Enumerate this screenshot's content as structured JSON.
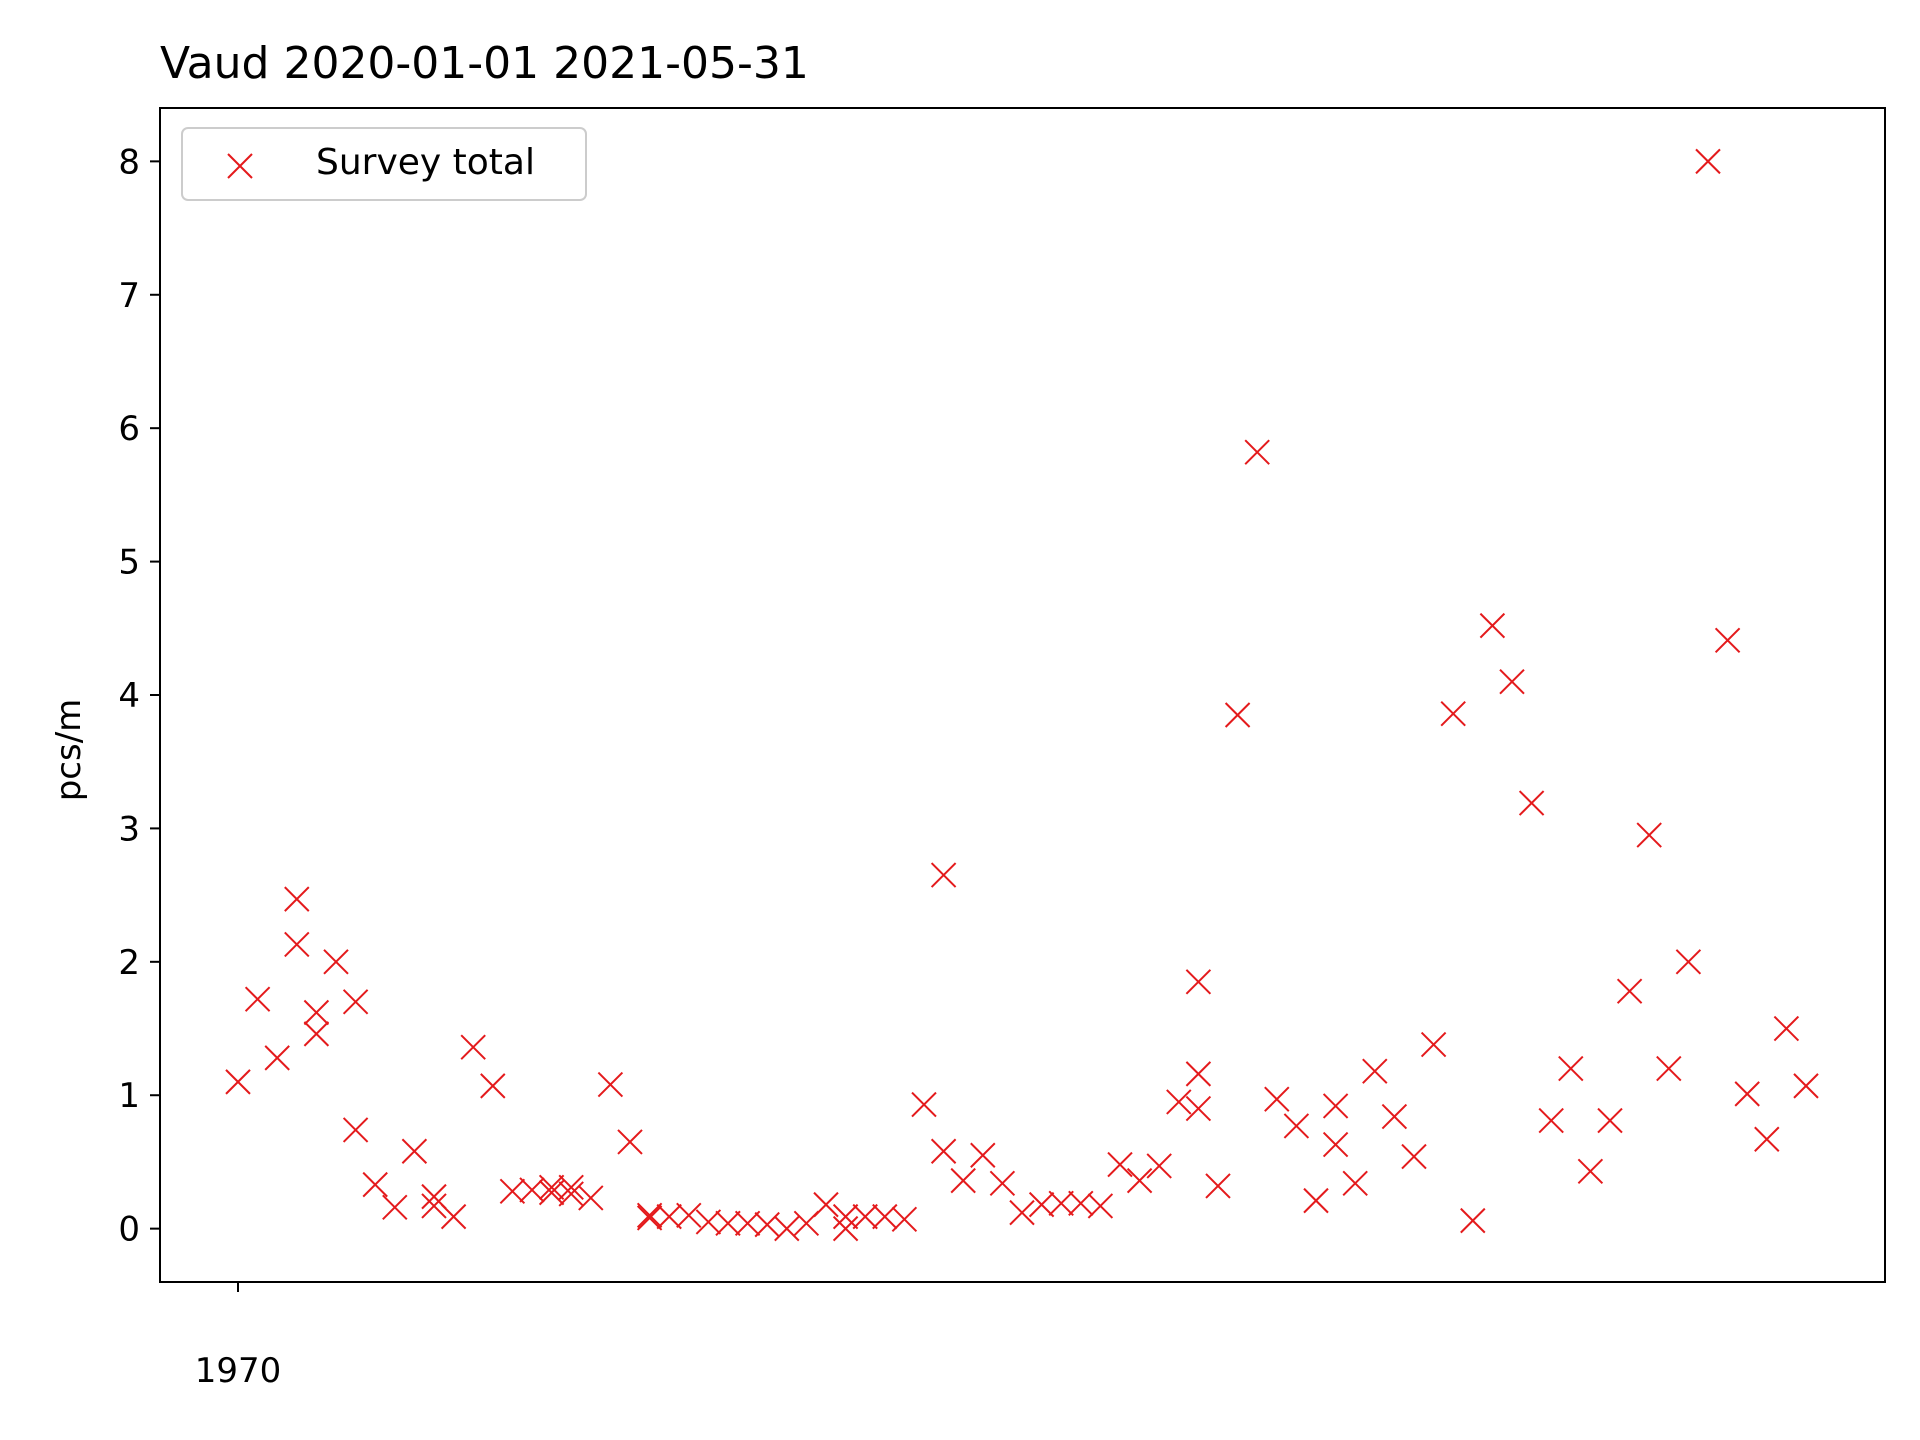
{
  "chart_data": {
    "type": "scatter",
    "title": "Vaud 2020-01-01 2021-05-31",
    "xlabel": "",
    "ylabel": "pcs/m",
    "x_ticks": [
      {
        "index": 0,
        "label": "1970"
      }
    ],
    "y_ticks": [
      0,
      1,
      2,
      3,
      4,
      5,
      6,
      7,
      8
    ],
    "ylim": [
      -0.4,
      8.4
    ],
    "xlim": [
      -3.8,
      76.3
    ],
    "grid": false,
    "legend": {
      "position": "top-left"
    },
    "marker": "x",
    "color": "#e41a1c",
    "series": [
      {
        "name": "Survey total",
        "points": [
          [
            0,
            1.1
          ],
          [
            1,
            1.72
          ],
          [
            2,
            1.28
          ],
          [
            3,
            2.47
          ],
          [
            3,
            2.13
          ],
          [
            4,
            1.62
          ],
          [
            4,
            1.46
          ],
          [
            5,
            2.0
          ],
          [
            6,
            1.7
          ],
          [
            6,
            0.74
          ],
          [
            7,
            0.33
          ],
          [
            8,
            0.16
          ],
          [
            9,
            0.58
          ],
          [
            10,
            0.24
          ],
          [
            10,
            0.17
          ],
          [
            11,
            0.09
          ],
          [
            12,
            1.36
          ],
          [
            13,
            1.07
          ],
          [
            14,
            0.28
          ],
          [
            15,
            0.29
          ],
          [
            16,
            0.31
          ],
          [
            16,
            0.27
          ],
          [
            17,
            0.31
          ],
          [
            17,
            0.26
          ],
          [
            18,
            0.23
          ],
          [
            19,
            1.08
          ],
          [
            20,
            0.65
          ],
          [
            21,
            0.1
          ],
          [
            21,
            0.08
          ],
          [
            22,
            0.09
          ],
          [
            23,
            0.1
          ],
          [
            24,
            0.05
          ],
          [
            25,
            0.04
          ],
          [
            26,
            0.04
          ],
          [
            27,
            0.03
          ],
          [
            28,
            0.0
          ],
          [
            29,
            0.04
          ],
          [
            30,
            0.18
          ],
          [
            31,
            0.09
          ],
          [
            31,
            0.0
          ],
          [
            32,
            0.09
          ],
          [
            33,
            0.09
          ],
          [
            34,
            0.07
          ],
          [
            35,
            0.93
          ],
          [
            36,
            2.65
          ],
          [
            36,
            0.58
          ],
          [
            37,
            0.36
          ],
          [
            38,
            0.55
          ],
          [
            39,
            0.34
          ],
          [
            40,
            0.12
          ],
          [
            41,
            0.18
          ],
          [
            42,
            0.19
          ],
          [
            43,
            0.19
          ],
          [
            44,
            0.17
          ],
          [
            45,
            0.48
          ],
          [
            46,
            0.36
          ],
          [
            47,
            0.47
          ],
          [
            48,
            0.95
          ],
          [
            49,
            1.85
          ],
          [
            49,
            1.16
          ],
          [
            49,
            0.9
          ],
          [
            50,
            0.32
          ],
          [
            51,
            3.85
          ],
          [
            52,
            5.82
          ],
          [
            53,
            0.97
          ],
          [
            54,
            0.77
          ],
          [
            55,
            0.21
          ],
          [
            56,
            0.92
          ],
          [
            56,
            0.63
          ],
          [
            57,
            0.34
          ],
          [
            58,
            1.18
          ],
          [
            59,
            0.84
          ],
          [
            60,
            0.54
          ],
          [
            61,
            1.38
          ],
          [
            62,
            3.86
          ],
          [
            63,
            0.06
          ],
          [
            64,
            4.52
          ],
          [
            65,
            4.1
          ],
          [
            66,
            3.19
          ],
          [
            67,
            0.81
          ],
          [
            68,
            1.2
          ],
          [
            69,
            0.43
          ],
          [
            70,
            0.81
          ],
          [
            71,
            1.78
          ],
          [
            72,
            2.95
          ],
          [
            73,
            1.2
          ],
          [
            74,
            2.0
          ],
          [
            75,
            8.0
          ],
          [
            76,
            4.41
          ],
          [
            77,
            1.01
          ],
          [
            78,
            0.67
          ],
          [
            79,
            1.5
          ],
          [
            80,
            1.07
          ]
        ]
      }
    ]
  }
}
